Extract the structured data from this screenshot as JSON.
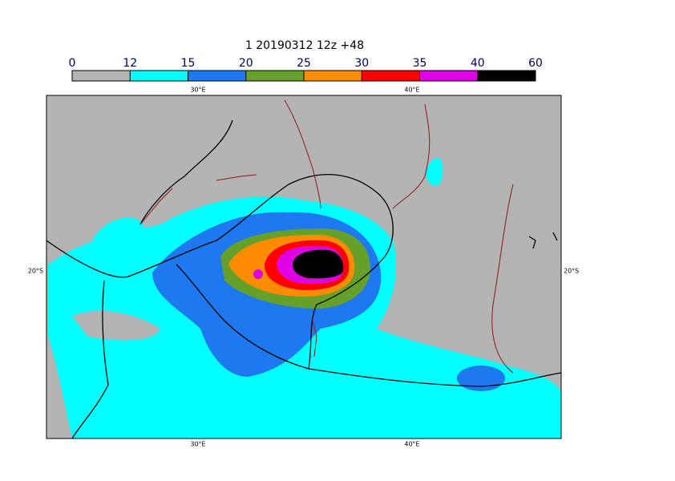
{
  "title": "1 20190312 12z +48",
  "colorbar": {
    "levels": [
      0,
      12,
      15,
      20,
      25,
      30,
      35,
      40,
      60
    ],
    "colors": [
      "#b4b4b4",
      "#00ffff",
      "#1e78f0",
      "#64a02a",
      "#ff8c00",
      "#ff0000",
      "#e000e6",
      "#000000"
    ]
  },
  "lon_labels": [
    "30°E",
    "40°E"
  ],
  "lat_labels": [
    "20°S"
  ]
}
